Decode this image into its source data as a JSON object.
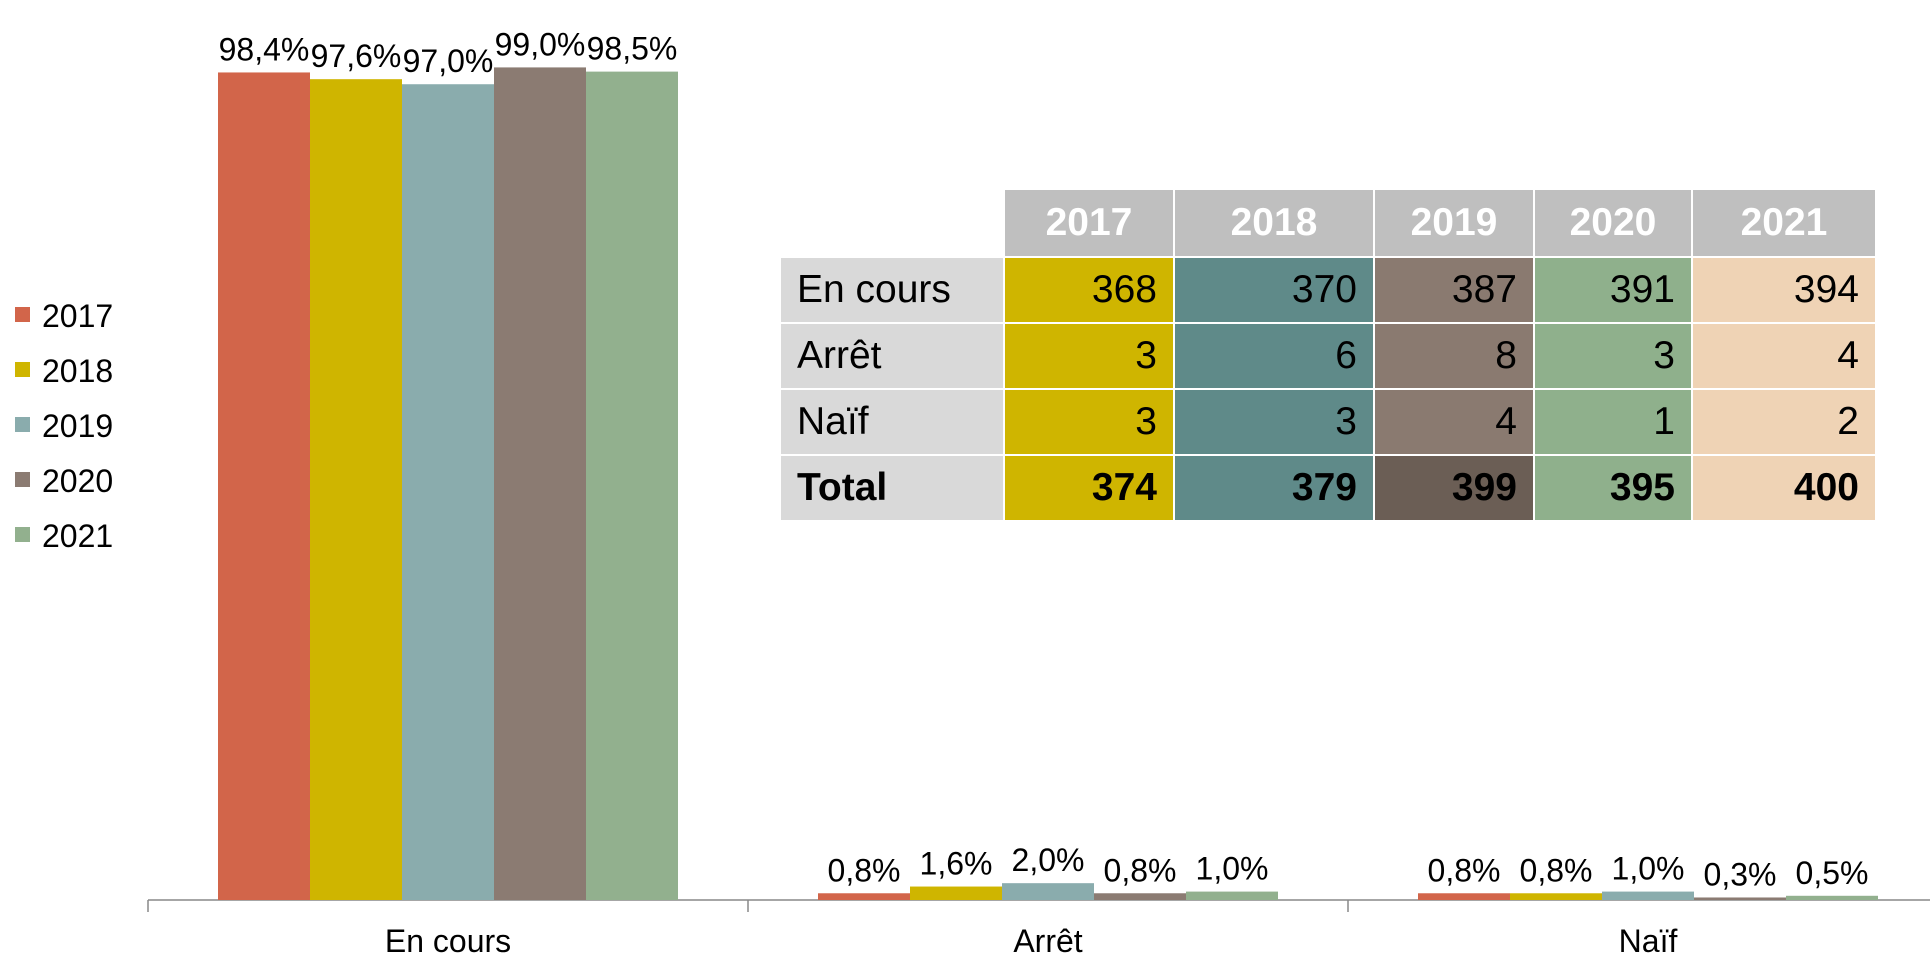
{
  "chart_data": {
    "type": "bar",
    "categories": [
      "En cours",
      "Arrêt",
      "Naïf"
    ],
    "ylim": [
      0,
      100
    ],
    "series": [
      {
        "name": "2017",
        "color": "#d2654a",
        "values": [
          98.4,
          0.8,
          0.8
        ],
        "value_labels": [
          "98,4%",
          "0,8%",
          "0,8%"
        ]
      },
      {
        "name": "2018",
        "color": "#cfb500",
        "values": [
          97.6,
          1.6,
          0.8
        ],
        "value_labels": [
          "97,6%",
          "1,6%",
          "0,8%"
        ]
      },
      {
        "name": "2019",
        "color": "#8aacad",
        "values": [
          97.0,
          2.0,
          1.0
        ],
        "value_labels": [
          "97,0%",
          "2,0%",
          "1,0%"
        ]
      },
      {
        "name": "2020",
        "color": "#8b7b72",
        "values": [
          99.0,
          0.8,
          0.3
        ],
        "value_labels": [
          "99,0%",
          "0,8%",
          "0,3%"
        ]
      },
      {
        "name": "2021",
        "color": "#92b08e",
        "values": [
          98.5,
          1.0,
          0.5
        ],
        "value_labels": [
          "98,5%",
          "1,0%",
          "0,5%"
        ]
      }
    ],
    "legend": "left"
  },
  "table": {
    "header": [
      "2017",
      "2018",
      "2019",
      "2020",
      "2021"
    ],
    "rows": [
      [
        "En cours",
        368,
        370,
        387,
        391,
        394
      ],
      [
        "Arrêt",
        3,
        6,
        8,
        3,
        4
      ],
      [
        "Naïf",
        3,
        3,
        4,
        1,
        2
      ],
      [
        "Total",
        374,
        379,
        399,
        395,
        400
      ]
    ]
  }
}
